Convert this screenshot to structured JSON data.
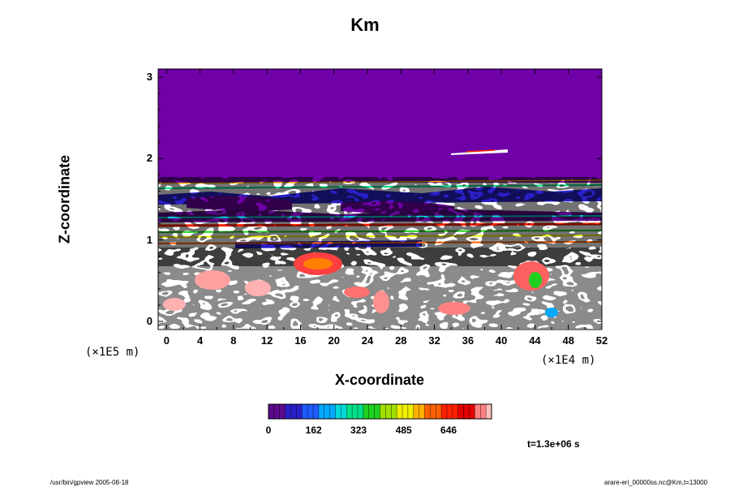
{
  "chart_data": {
    "type": "heatmap",
    "title": "Km",
    "xlabel": "X-coordinate",
    "ylabel": "Z-coordinate",
    "x_unit": "(×1E4 m)",
    "z_unit": "(×1E5 m)",
    "xlim": [
      -1,
      52
    ],
    "ylim": [
      -0.1,
      3.1
    ],
    "x_ticks": [
      "0",
      "4",
      "8",
      "12",
      "16",
      "20",
      "24",
      "28",
      "32",
      "36",
      "40",
      "44",
      "48",
      "52"
    ],
    "y_ticks": [
      "0",
      "1",
      "2",
      "3"
    ],
    "colorbar": {
      "range": [
        0,
        800
      ],
      "tick_labels": [
        "0",
        "162",
        "323",
        "485",
        "646"
      ],
      "colors": [
        "#5a0a8a",
        "#2a20c8",
        "#1e5cff",
        "#00a8ff",
        "#00d8d8",
        "#00e08a",
        "#20d020",
        "#a0e000",
        "#f0f000",
        "#ffb000",
        "#ff6000",
        "#ff2000",
        "#e00000",
        "#ff8080",
        "#ffc0c0"
      ]
    },
    "fill_color": "#7000a8",
    "time_label": "t=1.3e+06 s"
  },
  "footer": {
    "left": "/usr/bin/gpview 2005-08-18",
    "right": "arare-eri_00000ss.nc@Km,t=13000"
  }
}
